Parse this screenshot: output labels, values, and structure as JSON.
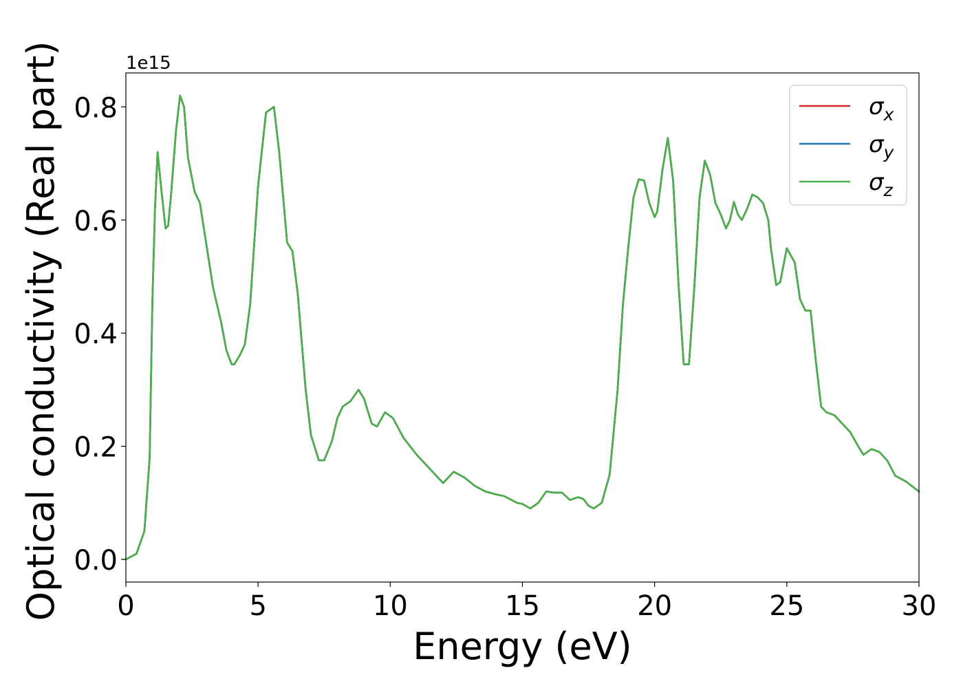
{
  "chart_data": {
    "type": "line",
    "xlabel": "Energy (eV)",
    "ylabel": "Optical conductivity (Real part)",
    "y_offset_label": "1e15",
    "xlim": [
      0,
      30
    ],
    "ylim": [
      -0.04,
      0.86
    ],
    "x_ticks": [
      0,
      5,
      10,
      15,
      20,
      25,
      30
    ],
    "x_tick_labels": [
      "0",
      "5",
      "10",
      "15",
      "20",
      "25",
      "30"
    ],
    "y_ticks": [
      0.0,
      0.2,
      0.4,
      0.6,
      0.8
    ],
    "y_tick_labels": [
      "0.0",
      "0.2",
      "0.4",
      "0.6",
      "0.8"
    ],
    "grid": false,
    "legend_position": "top-right",
    "legend": [
      {
        "symbol": "σ",
        "subscript": "x",
        "color": "#d62728"
      },
      {
        "symbol": "σ",
        "subscript": "y",
        "color": "#1f77b4"
      },
      {
        "symbol": "σ",
        "subscript": "z",
        "color": "#4daf4a"
      }
    ],
    "x": [
      0.0,
      0.4,
      0.7,
      0.9,
      1.0,
      1.1,
      1.2,
      1.35,
      1.5,
      1.6,
      1.7,
      1.9,
      2.05,
      2.2,
      2.35,
      2.6,
      2.8,
      3.0,
      3.3,
      3.6,
      3.8,
      4.0,
      4.1,
      4.3,
      4.5,
      4.7,
      5.0,
      5.3,
      5.6,
      5.8,
      6.1,
      6.3,
      6.5,
      6.8,
      7.0,
      7.3,
      7.5,
      7.8,
      8.0,
      8.2,
      8.5,
      8.8,
      9.0,
      9.3,
      9.5,
      9.8,
      10.1,
      10.5,
      11.0,
      11.5,
      12.0,
      12.4,
      12.8,
      13.2,
      13.6,
      14.0,
      14.3,
      14.8,
      15.0,
      15.3,
      15.6,
      15.9,
      16.2,
      16.5,
      16.8,
      17.1,
      17.3,
      17.5,
      17.7,
      18.0,
      18.3,
      18.6,
      18.8,
      19.0,
      19.2,
      19.4,
      19.6,
      19.8,
      20.0,
      20.1,
      20.3,
      20.5,
      20.7,
      20.9,
      21.1,
      21.3,
      21.5,
      21.7,
      21.9,
      22.1,
      22.3,
      22.5,
      22.7,
      22.85,
      23.0,
      23.15,
      23.3,
      23.5,
      23.7,
      23.9,
      24.1,
      24.3,
      24.4,
      24.6,
      24.75,
      25.0,
      25.3,
      25.5,
      25.7,
      25.9,
      26.1,
      26.3,
      26.5,
      26.8,
      27.1,
      27.4,
      27.7,
      27.9,
      28.2,
      28.5,
      28.8,
      29.1,
      29.5,
      30.0
    ],
    "series": [
      {
        "name": "σx",
        "color": "#d62728",
        "values": [
          0.0,
          0.01,
          0.05,
          0.18,
          0.45,
          0.62,
          0.72,
          0.65,
          0.585,
          0.59,
          0.64,
          0.76,
          0.82,
          0.8,
          0.71,
          0.65,
          0.63,
          0.57,
          0.48,
          0.42,
          0.37,
          0.345,
          0.345,
          0.36,
          0.38,
          0.45,
          0.66,
          0.79,
          0.8,
          0.72,
          0.56,
          0.545,
          0.47,
          0.3,
          0.22,
          0.175,
          0.175,
          0.21,
          0.25,
          0.27,
          0.28,
          0.3,
          0.285,
          0.24,
          0.235,
          0.26,
          0.25,
          0.215,
          0.185,
          0.16,
          0.135,
          0.155,
          0.145,
          0.13,
          0.12,
          0.115,
          0.112,
          0.1,
          0.098,
          0.09,
          0.1,
          0.12,
          0.118,
          0.118,
          0.105,
          0.11,
          0.107,
          0.095,
          0.09,
          0.1,
          0.15,
          0.3,
          0.45,
          0.55,
          0.64,
          0.672,
          0.67,
          0.63,
          0.605,
          0.615,
          0.69,
          0.745,
          0.67,
          0.49,
          0.345,
          0.345,
          0.48,
          0.64,
          0.705,
          0.68,
          0.63,
          0.61,
          0.585,
          0.6,
          0.632,
          0.61,
          0.6,
          0.62,
          0.645,
          0.64,
          0.63,
          0.6,
          0.55,
          0.485,
          0.49,
          0.55,
          0.525,
          0.46,
          0.44,
          0.44,
          0.35,
          0.27,
          0.26,
          0.255,
          0.24,
          0.225,
          0.2,
          0.185,
          0.195,
          0.19,
          0.175,
          0.148,
          0.138,
          0.12
        ]
      },
      {
        "name": "σy",
        "color": "#1f77b4",
        "values": [
          0.0,
          0.01,
          0.05,
          0.18,
          0.45,
          0.62,
          0.72,
          0.65,
          0.585,
          0.59,
          0.64,
          0.76,
          0.82,
          0.8,
          0.71,
          0.65,
          0.63,
          0.57,
          0.48,
          0.42,
          0.37,
          0.345,
          0.345,
          0.36,
          0.38,
          0.45,
          0.66,
          0.79,
          0.8,
          0.72,
          0.56,
          0.545,
          0.47,
          0.3,
          0.22,
          0.175,
          0.175,
          0.21,
          0.25,
          0.27,
          0.28,
          0.3,
          0.285,
          0.24,
          0.235,
          0.26,
          0.25,
          0.215,
          0.185,
          0.16,
          0.135,
          0.155,
          0.145,
          0.13,
          0.12,
          0.115,
          0.112,
          0.1,
          0.098,
          0.09,
          0.1,
          0.12,
          0.118,
          0.118,
          0.105,
          0.11,
          0.107,
          0.095,
          0.09,
          0.1,
          0.15,
          0.3,
          0.45,
          0.55,
          0.64,
          0.672,
          0.67,
          0.63,
          0.605,
          0.615,
          0.69,
          0.745,
          0.67,
          0.49,
          0.345,
          0.345,
          0.48,
          0.64,
          0.705,
          0.68,
          0.63,
          0.61,
          0.585,
          0.6,
          0.632,
          0.61,
          0.6,
          0.62,
          0.645,
          0.64,
          0.63,
          0.6,
          0.55,
          0.485,
          0.49,
          0.55,
          0.525,
          0.46,
          0.44,
          0.44,
          0.35,
          0.27,
          0.26,
          0.255,
          0.24,
          0.225,
          0.2,
          0.185,
          0.195,
          0.19,
          0.175,
          0.148,
          0.138,
          0.12
        ]
      },
      {
        "name": "σz",
        "color": "#4daf4a",
        "values": [
          0.0,
          0.01,
          0.05,
          0.18,
          0.45,
          0.62,
          0.72,
          0.65,
          0.585,
          0.59,
          0.64,
          0.76,
          0.82,
          0.8,
          0.71,
          0.65,
          0.63,
          0.57,
          0.48,
          0.42,
          0.37,
          0.345,
          0.345,
          0.36,
          0.38,
          0.45,
          0.66,
          0.79,
          0.8,
          0.72,
          0.56,
          0.545,
          0.47,
          0.3,
          0.22,
          0.175,
          0.175,
          0.21,
          0.25,
          0.27,
          0.28,
          0.3,
          0.285,
          0.24,
          0.235,
          0.26,
          0.25,
          0.215,
          0.185,
          0.16,
          0.135,
          0.155,
          0.145,
          0.13,
          0.12,
          0.115,
          0.112,
          0.1,
          0.098,
          0.09,
          0.1,
          0.12,
          0.118,
          0.118,
          0.105,
          0.11,
          0.107,
          0.095,
          0.09,
          0.1,
          0.15,
          0.3,
          0.45,
          0.55,
          0.64,
          0.672,
          0.67,
          0.63,
          0.605,
          0.615,
          0.69,
          0.745,
          0.67,
          0.49,
          0.345,
          0.345,
          0.48,
          0.64,
          0.705,
          0.68,
          0.63,
          0.61,
          0.585,
          0.6,
          0.632,
          0.61,
          0.6,
          0.62,
          0.645,
          0.64,
          0.63,
          0.6,
          0.55,
          0.485,
          0.49,
          0.55,
          0.525,
          0.46,
          0.44,
          0.44,
          0.35,
          0.27,
          0.26,
          0.255,
          0.24,
          0.225,
          0.2,
          0.185,
          0.195,
          0.19,
          0.175,
          0.148,
          0.138,
          0.12
        ]
      }
    ]
  }
}
